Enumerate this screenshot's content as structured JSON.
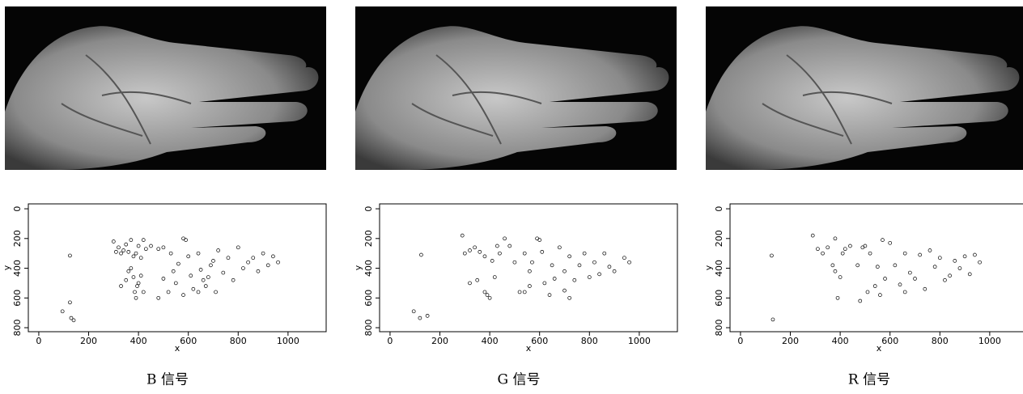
{
  "chart_data": [
    {
      "type": "scatter",
      "caption": "B 信号",
      "xlabel": "x",
      "ylabel": "y",
      "x": [
        125,
        95,
        125,
        130,
        140,
        300,
        310,
        320,
        330,
        340,
        350,
        360,
        370,
        380,
        390,
        400,
        410,
        420,
        430,
        360,
        370,
        380,
        385,
        390,
        395,
        400,
        410,
        420,
        350,
        330,
        450,
        480,
        500,
        520,
        530,
        540,
        550,
        560,
        580,
        590,
        600,
        610,
        620,
        640,
        650,
        660,
        670,
        680,
        700,
        710,
        720,
        740,
        760,
        780,
        800,
        820,
        840,
        860,
        880,
        900,
        920,
        940,
        960,
        480,
        500,
        580,
        640,
        690
      ],
      "y": [
        315,
        690,
        630,
        735,
        750,
        220,
        290,
        260,
        300,
        280,
        240,
        290,
        210,
        320,
        300,
        250,
        330,
        210,
        270,
        420,
        400,
        460,
        560,
        600,
        520,
        500,
        450,
        560,
        480,
        520,
        250,
        270,
        260,
        560,
        300,
        420,
        500,
        370,
        200,
        210,
        320,
        450,
        540,
        300,
        410,
        480,
        520,
        460,
        350,
        560,
        280,
        430,
        330,
        480,
        260,
        400,
        360,
        330,
        420,
        300,
        380,
        320,
        360,
        600,
        470,
        580,
        560,
        380
      ],
      "xlim": [
        -42,
        1153
      ],
      "ylim": [
        -33,
        827
      ],
      "y_inverted": true,
      "xticks": [
        0,
        200,
        400,
        600,
        800,
        1000
      ],
      "yticks": [
        0,
        200,
        400,
        600,
        800
      ]
    },
    {
      "type": "scatter",
      "caption": "G 信号",
      "xlabel": "x",
      "ylabel": "y",
      "x": [
        125,
        95,
        120,
        150,
        290,
        300,
        320,
        340,
        360,
        380,
        390,
        380,
        400,
        410,
        420,
        430,
        440,
        460,
        480,
        500,
        520,
        540,
        560,
        570,
        590,
        600,
        610,
        620,
        640,
        650,
        680,
        700,
        720,
        740,
        760,
        780,
        800,
        820,
        840,
        860,
        880,
        900,
        940,
        960,
        320,
        350,
        540,
        560,
        660,
        700,
        720
      ],
      "y": [
        310,
        690,
        735,
        720,
        180,
        300,
        280,
        260,
        290,
        320,
        580,
        560,
        600,
        350,
        460,
        250,
        300,
        200,
        250,
        360,
        560,
        300,
        420,
        360,
        200,
        210,
        290,
        500,
        580,
        380,
        260,
        420,
        320,
        480,
        380,
        300,
        460,
        360,
        440,
        300,
        390,
        420,
        330,
        360,
        500,
        480,
        560,
        520,
        470,
        550,
        600
      ],
      "xlim": [
        -42,
        1153
      ],
      "ylim": [
        -33,
        827
      ],
      "y_inverted": true,
      "xticks": [
        0,
        200,
        400,
        600,
        800,
        1000
      ],
      "yticks": [
        0,
        200,
        400,
        600,
        800
      ]
    },
    {
      "type": "scatter",
      "caption": "R 信号",
      "xlabel": "x",
      "ylabel": "y",
      "x": [
        125,
        130,
        290,
        310,
        330,
        350,
        370,
        380,
        390,
        400,
        410,
        420,
        440,
        380,
        470,
        490,
        500,
        510,
        520,
        540,
        550,
        570,
        580,
        600,
        620,
        640,
        660,
        680,
        700,
        720,
        740,
        760,
        780,
        800,
        820,
        840,
        860,
        880,
        900,
        920,
        940,
        960,
        480,
        560,
        660
      ],
      "y": [
        315,
        745,
        180,
        270,
        300,
        260,
        380,
        420,
        600,
        460,
        300,
        270,
        250,
        200,
        380,
        260,
        250,
        560,
        300,
        520,
        390,
        210,
        470,
        230,
        380,
        510,
        300,
        430,
        470,
        310,
        540,
        280,
        390,
        330,
        480,
        450,
        350,
        400,
        320,
        440,
        310,
        360,
        620,
        580,
        560
      ],
      "xlim": [
        -42,
        1153
      ],
      "ylim": [
        -33,
        827
      ],
      "y_inverted": true,
      "xticks": [
        0,
        200,
        400,
        600,
        800,
        1000
      ],
      "yticks": [
        0,
        200,
        400,
        600,
        800
      ]
    }
  ]
}
